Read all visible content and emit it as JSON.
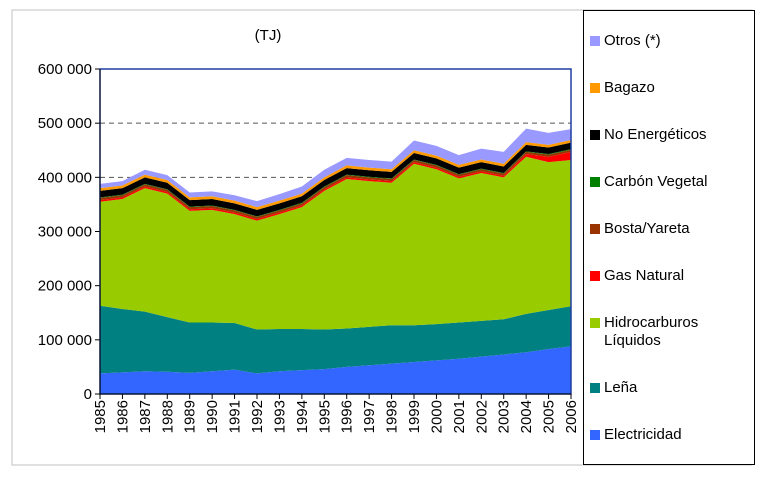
{
  "chart_data": {
    "type": "stacked-area",
    "title": "(TJ)",
    "categories": [
      "1985",
      "1986",
      "1987",
      "1988",
      "1989",
      "1990",
      "1991",
      "1992",
      "1993",
      "1994",
      "1995",
      "1996",
      "1997",
      "1998",
      "1999",
      "2000",
      "2001",
      "2002",
      "2003",
      "2004",
      "2005",
      "2006"
    ],
    "ylim": [
      0,
      600000
    ],
    "yticks": [
      0,
      {
        "value": 100000,
        "label": "100 000"
      },
      {
        "value": 200000,
        "label": "200 000"
      },
      {
        "value": 300000,
        "label": "300 000"
      },
      {
        "value": 400000,
        "label": "400 000"
      },
      {
        "value": 500000,
        "label": "500 000"
      },
      {
        "value": 600000,
        "label": "600 000"
      }
    ],
    "grid": true,
    "series": [
      {
        "name": "Electricidad",
        "color": "#3366ff",
        "values": [
          38000,
          40000,
          42000,
          41000,
          39000,
          42000,
          45000,
          38000,
          42000,
          44000,
          46000,
          50000,
          53000,
          56000,
          59000,
          62000,
          65000,
          69000,
          73000,
          77000,
          83000,
          88000
        ]
      },
      {
        "name": "Leña",
        "color": "#008080",
        "values": [
          125000,
          117000,
          110000,
          101000,
          93000,
          90000,
          86000,
          81000,
          78000,
          76000,
          73000,
          71000,
          71000,
          71000,
          68000,
          67000,
          67000,
          66000,
          65000,
          71000,
          72000,
          74000
        ]
      },
      {
        "name": "Hidrocarburos Líquidos",
        "color": "#99cc00",
        "values": [
          192000,
          203000,
          228000,
          228000,
          206000,
          208000,
          201000,
          201000,
          212000,
          225000,
          256000,
          276000,
          269000,
          263000,
          298000,
          286000,
          266000,
          273000,
          262000,
          290000,
          273000,
          270000
        ]
      },
      {
        "name": "Gas Natural",
        "color": "#ff0000",
        "values": [
          3000,
          3000,
          3000,
          3000,
          3000,
          3000,
          3000,
          3000,
          3000,
          3000,
          3000,
          3000,
          3000,
          3000,
          3000,
          3000,
          3000,
          3000,
          3000,
          5000,
          10000,
          15000
        ]
      },
      {
        "name": "Bosta/Yareta",
        "color": "#993300",
        "values": [
          4000,
          4000,
          4000,
          4000,
          4000,
          4000,
          4000,
          4000,
          4000,
          4000,
          4000,
          4000,
          4000,
          4000,
          4000,
          4000,
          4000,
          4000,
          4000,
          4000,
          4000,
          4000
        ]
      },
      {
        "name": "Carbón Vegetal",
        "color": "#008000",
        "values": [
          1000,
          1000,
          1000,
          1000,
          1000,
          1000,
          1000,
          1000,
          1000,
          1000,
          1000,
          1000,
          1000,
          1000,
          1000,
          1000,
          1000,
          1000,
          1000,
          1000,
          1000,
          1000
        ]
      },
      {
        "name": "No Energéticos",
        "color": "#000000",
        "values": [
          12000,
          12000,
          12000,
          12000,
          12000,
          12000,
          12000,
          12000,
          12000,
          12000,
          12000,
          12000,
          12000,
          12000,
          12000,
          12000,
          12000,
          12000,
          12000,
          12000,
          12000,
          12000
        ]
      },
      {
        "name": "Bagazo",
        "color": "#ff9900",
        "values": [
          5000,
          5000,
          5000,
          5000,
          5000,
          5000,
          5000,
          5000,
          5000,
          5000,
          5000,
          5000,
          5000,
          5000,
          5000,
          5000,
          5000,
          5000,
          5000,
          5000,
          5000,
          5000
        ]
      },
      {
        "name": "Otros (*)",
        "color": "#9999ff",
        "values": [
          8000,
          8000,
          9000,
          9000,
          9000,
          9000,
          10000,
          11000,
          12000,
          13000,
          14000,
          14000,
          14000,
          14000,
          18000,
          18000,
          18000,
          20000,
          22000,
          25000,
          22000,
          20000
        ]
      }
    ]
  }
}
